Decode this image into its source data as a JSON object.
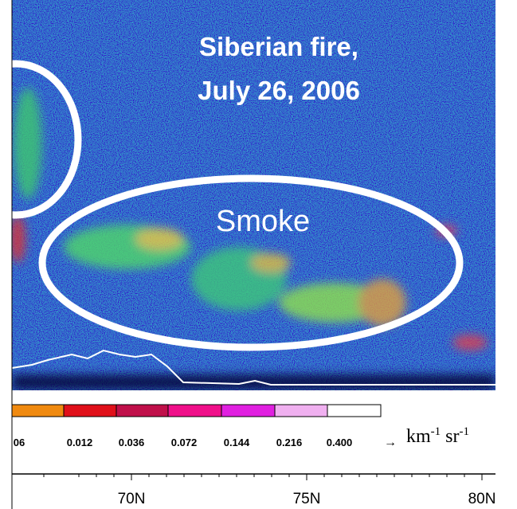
{
  "annotations": {
    "title": [
      "Siberian fire,",
      "July 26, 2006"
    ],
    "smoke": "Smoke"
  },
  "colorbar": {
    "labels": [
      "06",
      "0.012",
      "0.036",
      "0.072",
      "0.144",
      "0.216",
      "0.400"
    ],
    "arrow": "→",
    "unit": {
      "base1": "km",
      "sup1": "-1",
      "base2": " sr",
      "sup2": "-1"
    }
  },
  "x_axis": {
    "labels": [
      "70N",
      "75N",
      "80N"
    ]
  }
}
